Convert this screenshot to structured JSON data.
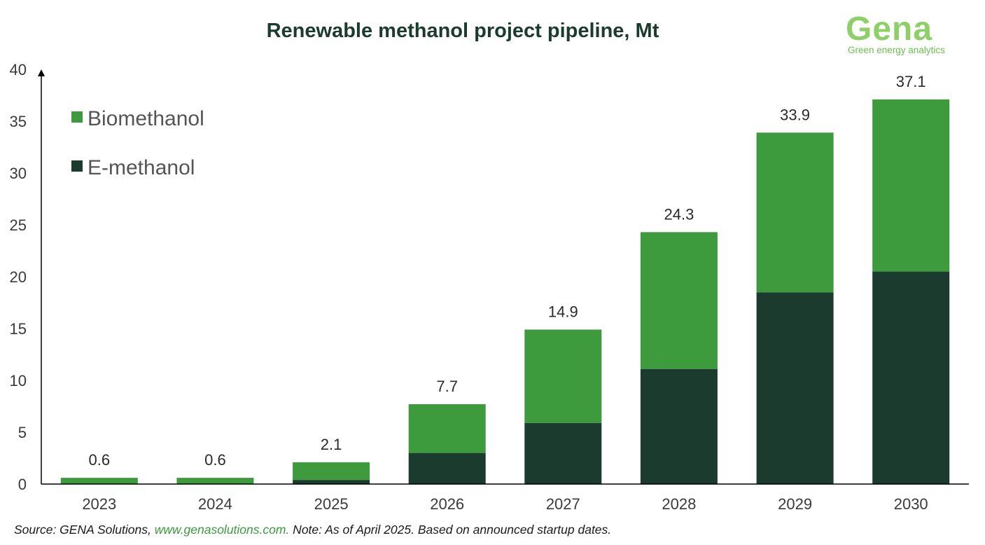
{
  "chart_data": {
    "type": "bar",
    "stacked": true,
    "title": "Renewable methanol project pipeline, Mt",
    "categories": [
      "2023",
      "2024",
      "2025",
      "2026",
      "2027",
      "2028",
      "2029",
      "2030"
    ],
    "series": [
      {
        "name": "E-methanol",
        "color": "#1b3b2f",
        "values": [
          0.0,
          0.0,
          0.4,
          3.0,
          5.9,
          11.1,
          18.5,
          20.5
        ]
      },
      {
        "name": "Biomethanol",
        "color": "#3d9b3e",
        "values": [
          0.6,
          0.6,
          1.7,
          4.7,
          9.0,
          13.2,
          15.4,
          16.6
        ]
      }
    ],
    "totals": [
      "0.6",
      "0.6",
      "2.1",
      "7.7",
      "14.9",
      "24.3",
      "33.9",
      "37.1"
    ],
    "yticks": [
      0,
      5,
      10,
      15,
      20,
      25,
      30,
      35,
      40
    ],
    "ylim": [
      0,
      40
    ],
    "xlabel": "",
    "ylabel": "",
    "legend": [
      {
        "name": "Biomethanol",
        "color": "#3d9b3e"
      },
      {
        "name": "E-methanol",
        "color": "#1b3b2f"
      }
    ],
    "legend_position": "top-left",
    "grid": false
  },
  "logo": {
    "word": "Gena",
    "tagline": "Green energy analytics"
  },
  "footer": {
    "prefix": "Source: GENA Solutions, ",
    "link": "www.genasolutions.com.",
    "suffix": " Note: As of April 2025. Based on announced startup dates."
  }
}
